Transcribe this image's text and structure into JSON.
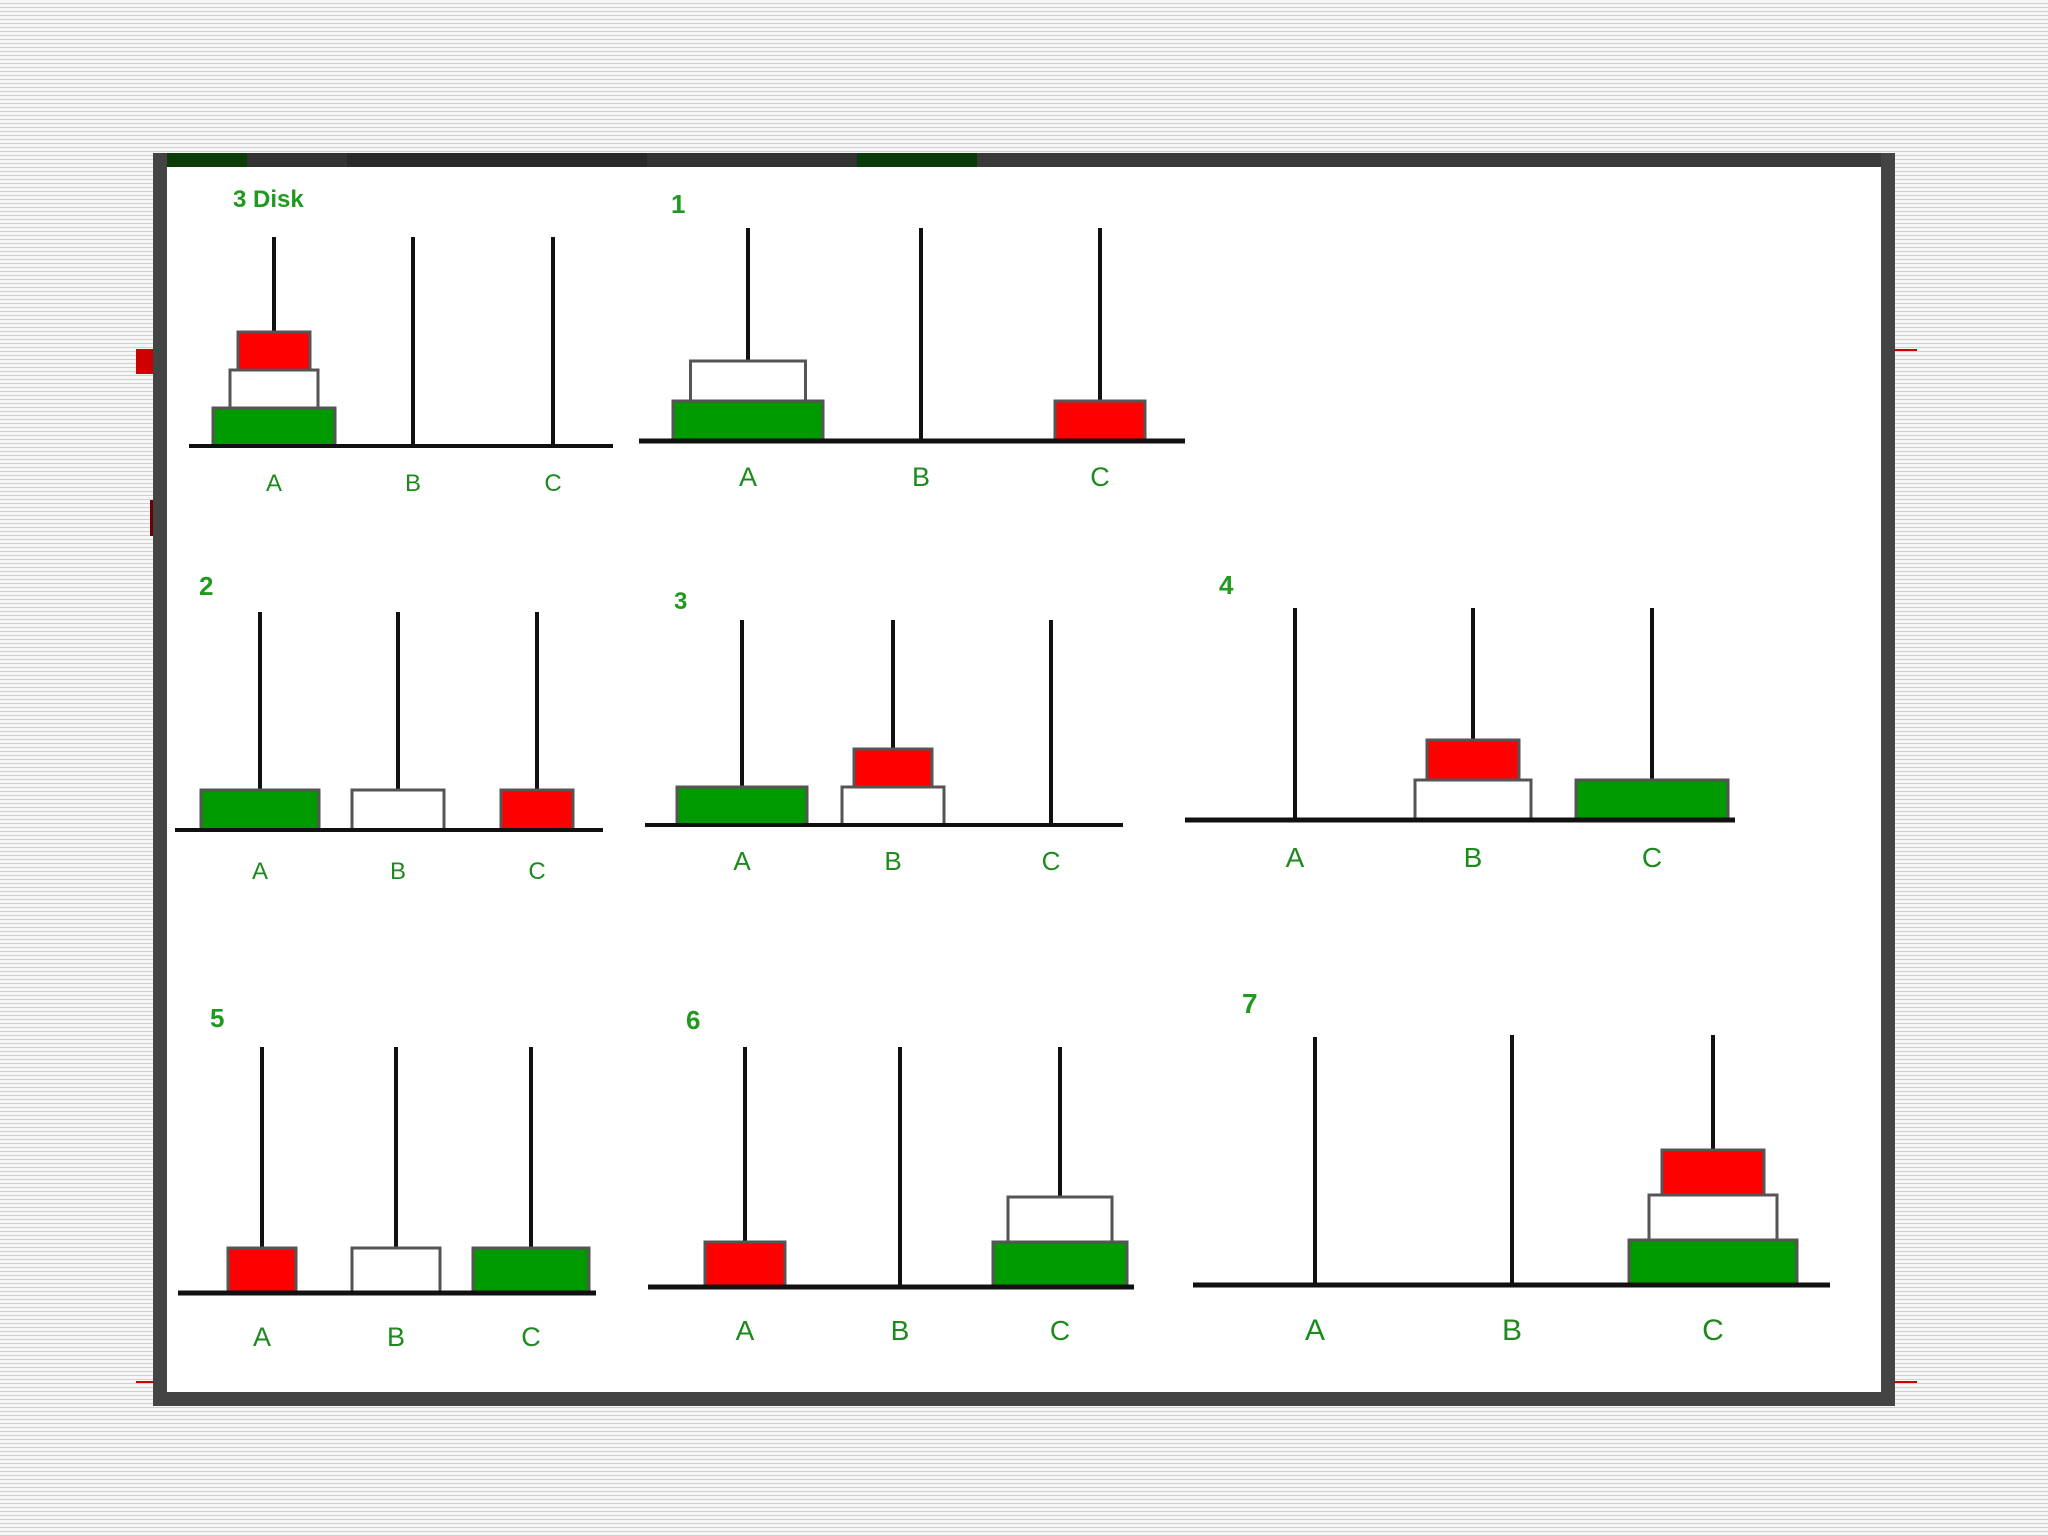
{
  "colors": {
    "red_disk": "#ff0000",
    "white_disk": "#ffffff",
    "green_disk": "#009900",
    "label_green": "#1e8a1e",
    "frame_border": "#444444",
    "slide_accent_red": "#cc0000"
  },
  "disks": {
    "small": "red",
    "medium": "white",
    "large": "green"
  },
  "panels": [
    {
      "title": "3 Disk",
      "pegs": {
        "A": [
          "large",
          "medium",
          "small"
        ],
        "B": [],
        "C": []
      },
      "labels": [
        "A",
        "B",
        "C"
      ]
    },
    {
      "title": "1",
      "pegs": {
        "A": [
          "large",
          "medium"
        ],
        "B": [],
        "C": [
          "small"
        ]
      },
      "labels": [
        "A",
        "B",
        "C"
      ]
    },
    {
      "title": "2",
      "pegs": {
        "A": [
          "large"
        ],
        "B": [
          "medium"
        ],
        "C": [
          "small"
        ]
      },
      "labels": [
        "A",
        "B",
        "C"
      ]
    },
    {
      "title": "3",
      "pegs": {
        "A": [
          "large"
        ],
        "B": [
          "medium",
          "small"
        ],
        "C": []
      },
      "labels": [
        "A",
        "B",
        "C"
      ]
    },
    {
      "title": "4",
      "pegs": {
        "A": [],
        "B": [
          "medium",
          "small"
        ],
        "C": [
          "large"
        ]
      },
      "labels": [
        "A",
        "B",
        "C"
      ]
    },
    {
      "title": "5",
      "pegs": {
        "A": [
          "small"
        ],
        "B": [
          "medium"
        ],
        "C": [
          "large"
        ]
      },
      "labels": [
        "A",
        "B",
        "C"
      ]
    },
    {
      "title": "6",
      "pegs": {
        "A": [
          "small"
        ],
        "B": [],
        "C": [
          "large",
          "medium"
        ]
      },
      "labels": [
        "A",
        "B",
        "C"
      ]
    },
    {
      "title": "7",
      "pegs": {
        "A": [],
        "B": [],
        "C": [
          "large",
          "medium",
          "small"
        ]
      },
      "labels": [
        "A",
        "B",
        "C"
      ]
    }
  ]
}
